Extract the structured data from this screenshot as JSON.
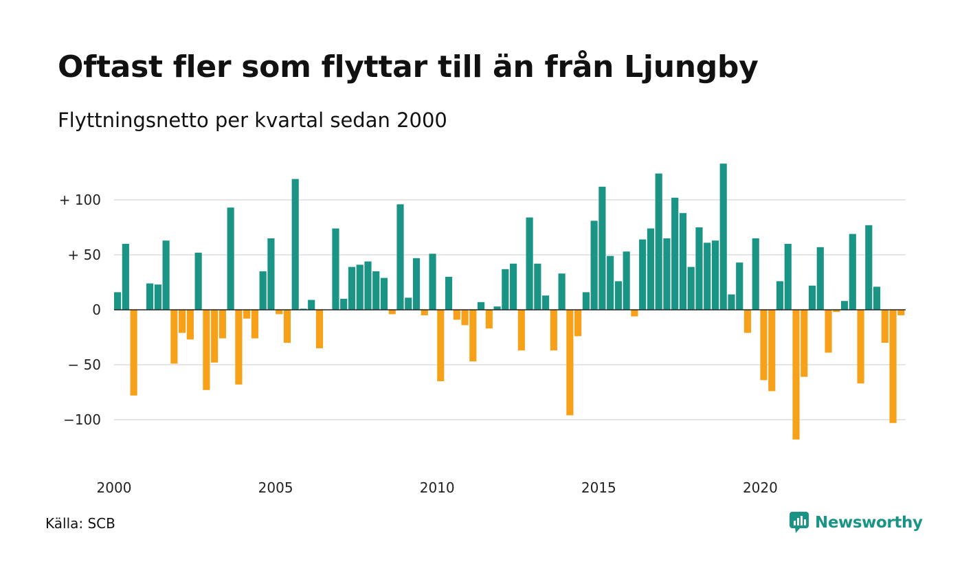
{
  "header": {
    "title": "Oftast fler som flyttar till än från Ljungby",
    "subtitle": "Flyttningsnetto per kvartal sedan 2000"
  },
  "footer": {
    "source": "Källa: SCB",
    "brand": "Newsworthy"
  },
  "colors": {
    "positive": "#1a9484",
    "negative": "#f7a11a",
    "grid": "#dddddd",
    "axis": "#222222"
  },
  "chart_data": {
    "type": "bar",
    "title": "Oftast fler som flyttar till än från Ljungby",
    "subtitle": "Flyttningsnetto per kvartal sedan 2000",
    "xlabel": "",
    "ylabel": "",
    "ylim": [
      -135,
      140
    ],
    "grid": true,
    "y_ticks": [
      {
        "value": 100,
        "label": "+ 100"
      },
      {
        "value": 50,
        "label": "+  50"
      },
      {
        "value": 0,
        "label": "0"
      },
      {
        "value": -50,
        "label": "− 50"
      },
      {
        "value": -100,
        "label": "−100"
      }
    ],
    "x_ticks": [
      "2000",
      "2005",
      "2010",
      "2015",
      "2020"
    ],
    "start_year": 2000,
    "values": [
      16,
      60,
      -78,
      0,
      24,
      23,
      63,
      -49,
      -21,
      -27,
      52,
      -73,
      -48,
      -26,
      93,
      -68,
      -8,
      -26,
      35,
      65,
      -4,
      -30,
      119,
      1,
      9,
      -35,
      0,
      74,
      10,
      39,
      41,
      44,
      35,
      29,
      -4,
      96,
      11,
      47,
      -5,
      51,
      -65,
      30,
      -9,
      -14,
      -47,
      7,
      -17,
      3,
      37,
      42,
      -37,
      84,
      42,
      13,
      -37,
      33,
      -96,
      -24,
      16,
      81,
      112,
      49,
      26,
      53,
      -6,
      64,
      74,
      124,
      65,
      102,
      88,
      39,
      75,
      61,
      63,
      133,
      14,
      43,
      -21,
      65,
      -64,
      -74,
      26,
      60,
      -118,
      -61,
      22,
      57,
      -39,
      -2,
      8,
      69,
      -67,
      77,
      21,
      -30,
      -103,
      -5
    ]
  }
}
